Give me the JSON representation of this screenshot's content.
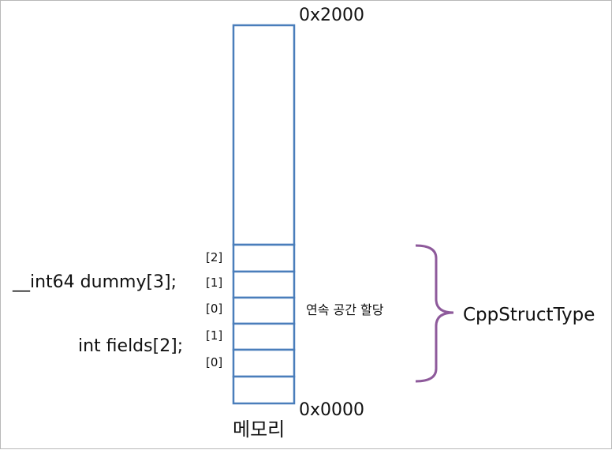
{
  "memory": {
    "label": "메모리",
    "top_address": "0x2000",
    "bottom_address": "0x0000",
    "cell_color": "#4a7ebb"
  },
  "declarations": {
    "dummy": "__int64 dummy[3];",
    "fields": "int fields[2];"
  },
  "indices": {
    "dummy": [
      "[2]",
      "[1]",
      "[0]"
    ],
    "fields": [
      "[1]",
      "[0]"
    ]
  },
  "annotation": {
    "contiguous_text": "연속 공간 할당",
    "struct_name": "CppStructType",
    "brace_color": "#8e5a9b"
  }
}
